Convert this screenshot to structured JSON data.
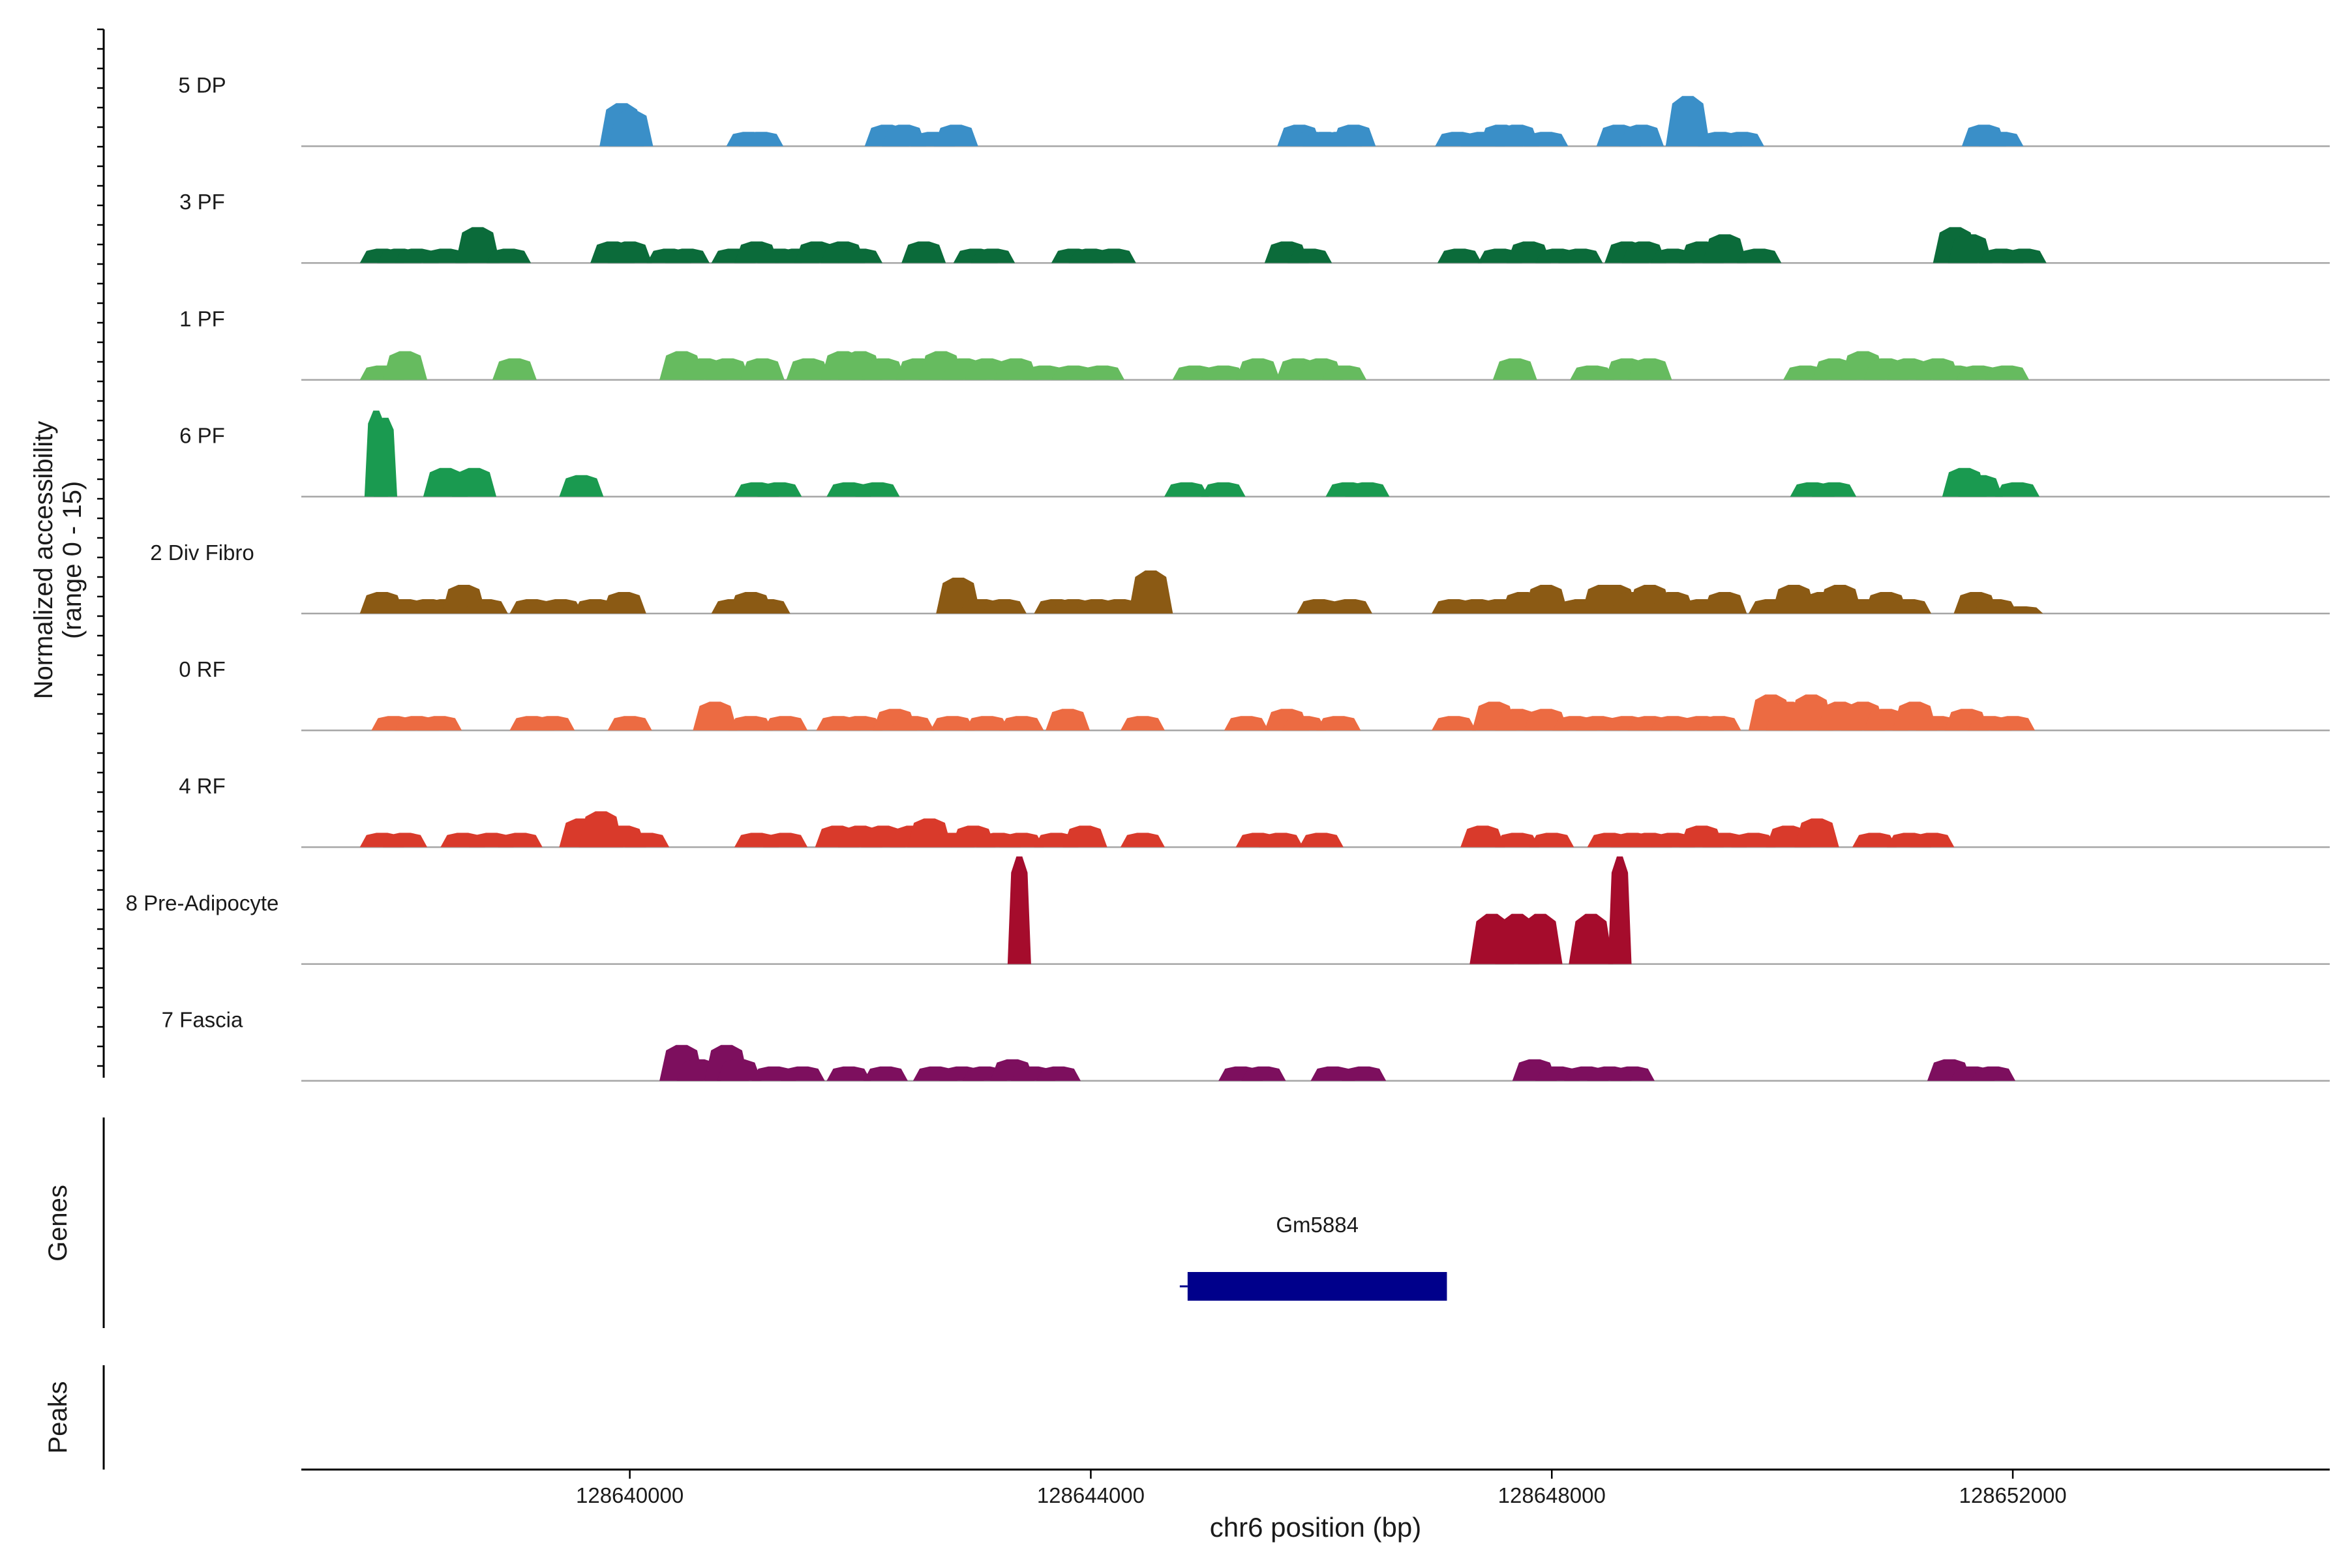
{
  "chart_data": {
    "type": "coverage_track",
    "y_axis_label_line1": "Normalized accessibility",
    "y_axis_label_line2": "(range 0 - 15)",
    "ylim": [
      0,
      15
    ],
    "x_axis_label": "chr6 position (bp)",
    "xlim": [
      128637150,
      128654750
    ],
    "x_ticks": [
      128640000,
      128644000,
      128648000,
      128652000
    ],
    "x_tick_labels": [
      "128640000",
      "128644000",
      "128648000",
      "128652000"
    ],
    "genes_label": "Genes",
    "peaks_label": "Peaks",
    "genes": [
      {
        "name": "Gm5884",
        "start": 128644840,
        "end": 128647090,
        "color": "#00008b"
      }
    ],
    "series": [
      {
        "name": "5 DP",
        "color": "#3a8fc8",
        "peaks": [
          [
            128639930,
            6
          ],
          [
            128640010,
            5
          ],
          [
            128641030,
            2
          ],
          [
            128641140,
            2
          ],
          [
            128642230,
            3
          ],
          [
            128642380,
            3
          ],
          [
            128642630,
            2
          ],
          [
            128642830,
            3
          ],
          [
            128645810,
            3
          ],
          [
            128645920,
            2
          ],
          [
            128646030,
            2
          ],
          [
            128646160,
            2
          ],
          [
            128646280,
            3
          ],
          [
            128647180,
            2
          ],
          [
            128647400,
            2
          ],
          [
            128647560,
            3
          ],
          [
            128647700,
            3
          ],
          [
            128647950,
            2
          ],
          [
            128648580,
            3
          ],
          [
            128648780,
            3
          ],
          [
            128649180,
            7
          ],
          [
            128649460,
            2
          ],
          [
            128649650,
            2
          ],
          [
            128651750,
            3
          ],
          [
            128651900,
            2
          ]
        ]
      },
      {
        "name": "3 PF",
        "color": "#0b6b3a",
        "peaks": [
          [
            128637850,
            2
          ],
          [
            128638000,
            2
          ],
          [
            128638150,
            2
          ],
          [
            128638400,
            2
          ],
          [
            128638680,
            5
          ],
          [
            128638950,
            2
          ],
          [
            128639850,
            3
          ],
          [
            128640000,
            3
          ],
          [
            128640340,
            2
          ],
          [
            128640500,
            2
          ],
          [
            128640900,
            2
          ],
          [
            128641100,
            3
          ],
          [
            128641300,
            2
          ],
          [
            128641450,
            2
          ],
          [
            128641620,
            3
          ],
          [
            128641850,
            3
          ],
          [
            128642000,
            2
          ],
          [
            128642550,
            3
          ],
          [
            128643000,
            2
          ],
          [
            128643150,
            2
          ],
          [
            128643850,
            2
          ],
          [
            128644000,
            2
          ],
          [
            128644200,
            2
          ],
          [
            128645700,
            3
          ],
          [
            128645900,
            2
          ],
          [
            128647200,
            2
          ],
          [
            128647550,
            2
          ],
          [
            128647800,
            3
          ],
          [
            128648050,
            2
          ],
          [
            128648250,
            2
          ],
          [
            128648650,
            3
          ],
          [
            128648800,
            3
          ],
          [
            128649050,
            2
          ],
          [
            128649300,
            3
          ],
          [
            128649500,
            4
          ],
          [
            128649800,
            2
          ],
          [
            128651500,
            5
          ],
          [
            128651630,
            4
          ],
          [
            128651900,
            2
          ],
          [
            128652100,
            2
          ]
        ]
      },
      {
        "name": "1 PF",
        "color": "#66bb5f",
        "peaks": [
          [
            128637850,
            2
          ],
          [
            128638050,
            4
          ],
          [
            128639000,
            3
          ],
          [
            128640450,
            4
          ],
          [
            128640650,
            3
          ],
          [
            128640850,
            3
          ],
          [
            128641150,
            3
          ],
          [
            128641550,
            3
          ],
          [
            128641850,
            4
          ],
          [
            128642000,
            4
          ],
          [
            128642200,
            3
          ],
          [
            128642500,
            3
          ],
          [
            128642700,
            4
          ],
          [
            128642900,
            3
          ],
          [
            128643100,
            3
          ],
          [
            128643350,
            3
          ],
          [
            128643600,
            2
          ],
          [
            128643850,
            2
          ],
          [
            128644100,
            2
          ],
          [
            128644900,
            2
          ],
          [
            128645150,
            2
          ],
          [
            128645450,
            3
          ],
          [
            128645800,
            3
          ],
          [
            128646000,
            3
          ],
          [
            128646200,
            2
          ],
          [
            128647680,
            3
          ],
          [
            128648350,
            2
          ],
          [
            128648650,
            3
          ],
          [
            128648850,
            3
          ],
          [
            128650200,
            2
          ],
          [
            128650450,
            3
          ],
          [
            128650700,
            4
          ],
          [
            128650900,
            3
          ],
          [
            128651100,
            3
          ],
          [
            128651350,
            3
          ],
          [
            128651500,
            2
          ],
          [
            128651700,
            2
          ],
          [
            128651950,
            2
          ]
        ]
      },
      {
        "name": "6 PF",
        "color": "#1a9a50",
        "peaks": [
          [
            128637800,
            12
          ],
          [
            128637880,
            11
          ],
          [
            128638400,
            4
          ],
          [
            128638650,
            4
          ],
          [
            128639580,
            3
          ],
          [
            128641100,
            2
          ],
          [
            128641300,
            2
          ],
          [
            128641900,
            2
          ],
          [
            128642150,
            2
          ],
          [
            128644830,
            2
          ],
          [
            128645150,
            2
          ],
          [
            128646230,
            2
          ],
          [
            128646400,
            2
          ],
          [
            128650260,
            2
          ],
          [
            128650450,
            2
          ],
          [
            128651580,
            4
          ],
          [
            128651720,
            3
          ],
          [
            128652040,
            2
          ]
        ]
      },
      {
        "name": "2 Div Fibro",
        "color": "#8b5a14",
        "peaks": [
          [
            128637850,
            3
          ],
          [
            128638050,
            2
          ],
          [
            128638250,
            2
          ],
          [
            128638400,
            2
          ],
          [
            128638560,
            4
          ],
          [
            128638750,
            2
          ],
          [
            128639150,
            2
          ],
          [
            128639400,
            2
          ],
          [
            128639700,
            2
          ],
          [
            128639950,
            3
          ],
          [
            128640900,
            2
          ],
          [
            128641050,
            3
          ],
          [
            128641200,
            2
          ],
          [
            128642850,
            5
          ],
          [
            128643050,
            2
          ],
          [
            128643250,
            2
          ],
          [
            128643700,
            2
          ],
          [
            128643850,
            2
          ],
          [
            128644050,
            2
          ],
          [
            128644250,
            2
          ],
          [
            128644520,
            6
          ],
          [
            128645980,
            2
          ],
          [
            128646250,
            2
          ],
          [
            128647150,
            2
          ],
          [
            128647350,
            2
          ],
          [
            128647550,
            2
          ],
          [
            128647750,
            3
          ],
          [
            128647950,
            4
          ],
          [
            128648250,
            2
          ],
          [
            128648450,
            4
          ],
          [
            128648550,
            4
          ],
          [
            128648700,
            3
          ],
          [
            128648850,
            4
          ],
          [
            128649050,
            3
          ],
          [
            128649300,
            2
          ],
          [
            128649500,
            3
          ],
          [
            128649900,
            2
          ],
          [
            128650100,
            4
          ],
          [
            128650350,
            3
          ],
          [
            128650500,
            4
          ],
          [
            128650700,
            2
          ],
          [
            128650900,
            3
          ],
          [
            128651100,
            2
          ],
          [
            128651680,
            3
          ],
          [
            128651850,
            2
          ],
          [
            128652070,
            1
          ]
        ]
      },
      {
        "name": "0 RF",
        "color": "#ec6b42",
        "peaks": [
          [
            128637950,
            2
          ],
          [
            128638150,
            2
          ],
          [
            128638350,
            2
          ],
          [
            128639150,
            2
          ],
          [
            128639330,
            2
          ],
          [
            128640000,
            2
          ],
          [
            128640740,
            4
          ],
          [
            128641050,
            2
          ],
          [
            128641350,
            2
          ],
          [
            128641810,
            2
          ],
          [
            128642000,
            2
          ],
          [
            128642300,
            3
          ],
          [
            128642450,
            2
          ],
          [
            128642800,
            2
          ],
          [
            128643100,
            2
          ],
          [
            128643400,
            2
          ],
          [
            128643800,
            3
          ],
          [
            128644450,
            2
          ],
          [
            128645350,
            2
          ],
          [
            128645700,
            3
          ],
          [
            128645850,
            2
          ],
          [
            128646150,
            2
          ],
          [
            128647150,
            2
          ],
          [
            128647500,
            4
          ],
          [
            128647700,
            3
          ],
          [
            128647950,
            3
          ],
          [
            128648200,
            2
          ],
          [
            128648400,
            2
          ],
          [
            128648650,
            2
          ],
          [
            128648850,
            2
          ],
          [
            128649050,
            2
          ],
          [
            128649300,
            2
          ],
          [
            128649450,
            2
          ],
          [
            128649900,
            5
          ],
          [
            128650050,
            4
          ],
          [
            128650250,
            5
          ],
          [
            128650500,
            4
          ],
          [
            128650700,
            4
          ],
          [
            128650900,
            3
          ],
          [
            128651150,
            4
          ],
          [
            128651350,
            2
          ],
          [
            128651600,
            3
          ],
          [
            128651800,
            2
          ],
          [
            128652000,
            2
          ]
        ]
      },
      {
        "name": "4 RF",
        "color": "#d93a2b",
        "peaks": [
          [
            128637850,
            2
          ],
          [
            128638050,
            2
          ],
          [
            128638550,
            2
          ],
          [
            128638800,
            2
          ],
          [
            128639050,
            2
          ],
          [
            128639580,
            4
          ],
          [
            128639750,
            5
          ],
          [
            128639950,
            3
          ],
          [
            128640150,
            2
          ],
          [
            128641100,
            2
          ],
          [
            128641350,
            2
          ],
          [
            128641800,
            3
          ],
          [
            128642000,
            3
          ],
          [
            128642200,
            3
          ],
          [
            128642450,
            3
          ],
          [
            128642600,
            4
          ],
          [
            128642800,
            2
          ],
          [
            128642980,
            3
          ],
          [
            128643200,
            2
          ],
          [
            128643400,
            2
          ],
          [
            128643700,
            2
          ],
          [
            128643950,
            3
          ],
          [
            128644450,
            2
          ],
          [
            128645450,
            2
          ],
          [
            128645650,
            2
          ],
          [
            128646000,
            2
          ],
          [
            128647400,
            3
          ],
          [
            128647700,
            2
          ],
          [
            128648000,
            2
          ],
          [
            128648500,
            2
          ],
          [
            128648700,
            2
          ],
          [
            128648850,
            2
          ],
          [
            128649050,
            2
          ],
          [
            128649300,
            3
          ],
          [
            128649500,
            2
          ],
          [
            128649750,
            2
          ],
          [
            128650050,
            3
          ],
          [
            128650300,
            4
          ],
          [
            128650800,
            2
          ],
          [
            128651100,
            2
          ],
          [
            128651300,
            2
          ]
        ]
      },
      {
        "name": "8 Pre-Adipocyte",
        "color": "#a50c2c",
        "peaks": [
          [
            128643380,
            15
          ],
          [
            128647480,
            7
          ],
          [
            128647700,
            7
          ],
          [
            128647900,
            7
          ],
          [
            128648340,
            7
          ],
          [
            128648590,
            15
          ]
        ]
      },
      {
        "name": "7 Fascia",
        "color": "#7d0f5e",
        "peaks": [
          [
            128640450,
            5
          ],
          [
            128640600,
            3
          ],
          [
            128640840,
            5
          ],
          [
            128640950,
            3
          ],
          [
            128641250,
            2
          ],
          [
            128641500,
            2
          ],
          [
            128641900,
            2
          ],
          [
            128642220,
            2
          ],
          [
            128642650,
            2
          ],
          [
            128642880,
            2
          ],
          [
            128643080,
            2
          ],
          [
            128643320,
            3
          ],
          [
            128643500,
            2
          ],
          [
            128643720,
            2
          ],
          [
            128645300,
            2
          ],
          [
            128645500,
            2
          ],
          [
            128646100,
            2
          ],
          [
            128646370,
            2
          ],
          [
            128647850,
            3
          ],
          [
            128648050,
            2
          ],
          [
            128648300,
            2
          ],
          [
            128648500,
            2
          ],
          [
            128648700,
            2
          ],
          [
            128651450,
            3
          ],
          [
            128651650,
            2
          ],
          [
            128651830,
            2
          ]
        ]
      }
    ]
  }
}
